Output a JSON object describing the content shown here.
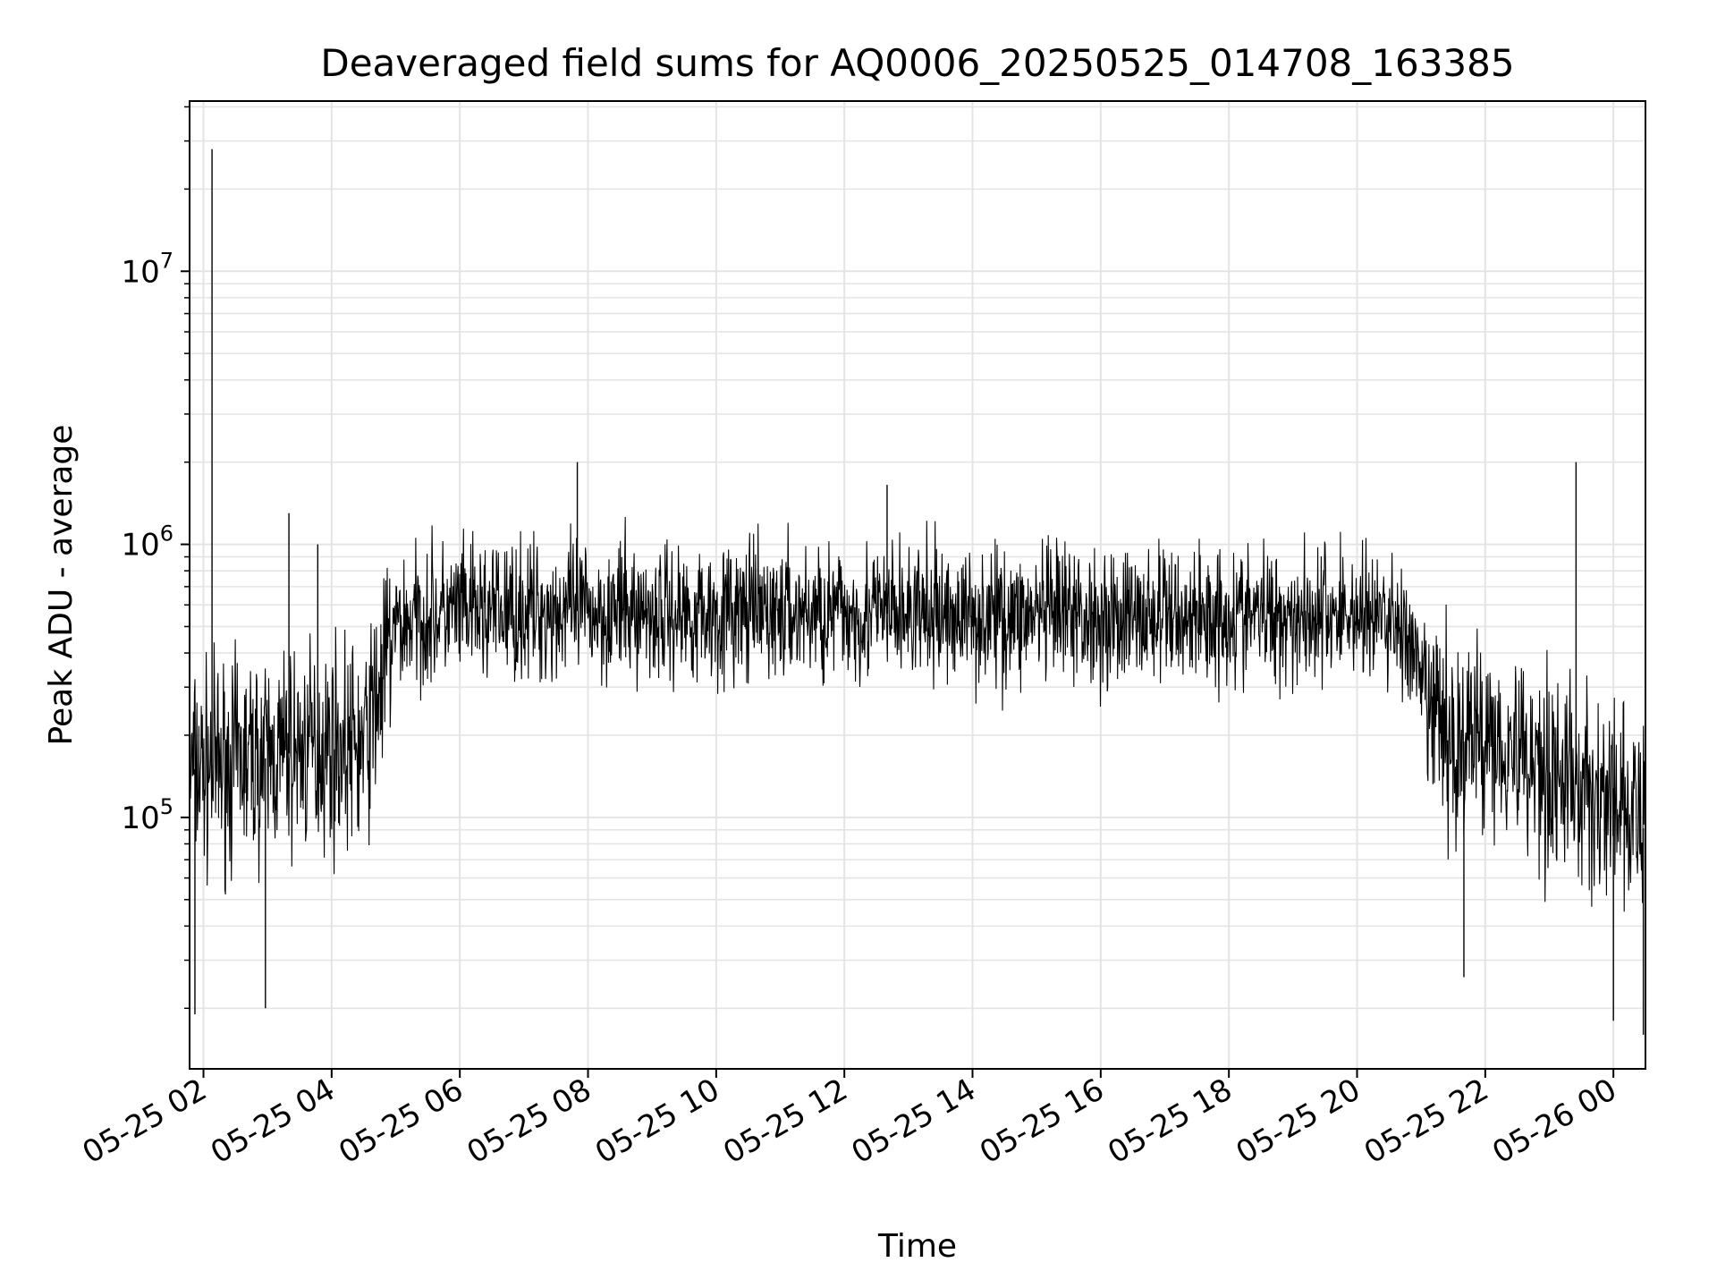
{
  "chart_data": {
    "type": "line",
    "title": "Deaveraged field sums for AQ0006_20250525_014708_163385",
    "xlabel": "Time",
    "ylabel": "Peak ADU - average",
    "x_scale": "time",
    "y_scale": "log",
    "xlim": [
      "2025-05-25 01:47",
      "2025-05-26 00:30"
    ],
    "ylim": [
      12000,
      42000000
    ],
    "x_ticks": [
      "05-25 02",
      "05-25 04",
      "05-25 06",
      "05-25 08",
      "05-25 10",
      "05-25 12",
      "05-25 14",
      "05-25 16",
      "05-25 18",
      "05-25 20",
      "05-25 22",
      "05-26 00"
    ],
    "y_ticks": [
      {
        "base": "10",
        "exp": "5",
        "value": 100000
      },
      {
        "base": "10",
        "exp": "6",
        "value": 1000000
      },
      {
        "base": "10",
        "exp": "7",
        "value": 10000000
      }
    ],
    "grid": true,
    "line_color": "#000000",
    "series": [
      {
        "x": [
          "2025-05-25 01:47",
          "2025-05-25 02:00",
          "2025-05-25 02:30",
          "2025-05-25 03:00",
          "2025-05-25 03:30",
          "2025-05-25 04:00",
          "2025-05-25 04:30",
          "2025-05-25 05:00",
          "2025-05-25 05:30",
          "2025-05-25 06:00",
          "2025-05-25 07:00",
          "2025-05-25 08:00",
          "2025-05-25 10:00",
          "2025-05-25 12:00",
          "2025-05-25 14:00",
          "2025-05-25 16:00",
          "2025-05-25 18:00",
          "2025-05-25 20:00",
          "2025-05-25 20:40",
          "2025-05-25 21:00",
          "2025-05-25 21:30",
          "2025-05-25 22:00",
          "2025-05-25 23:00",
          "2025-05-26 00:00",
          "2025-05-26 00:30"
        ],
        "y": [
          150000,
          150000,
          160000,
          165000,
          175000,
          185000,
          180000,
          500000,
          550000,
          560000,
          570000,
          570000,
          560000,
          560000,
          550000,
          540000,
          550000,
          560000,
          520000,
          300000,
          180000,
          210000,
          150000,
          110000,
          90000
        ],
        "spikes": [
          {
            "x": "2025-05-25 02:08",
            "y": 28000000
          },
          {
            "x": "2025-05-25 03:20",
            "y": 1300000
          },
          {
            "x": "2025-05-25 03:47",
            "y": 1000000
          },
          {
            "x": "2025-05-25 07:50",
            "y": 2000000
          },
          {
            "x": "2025-05-25 12:40",
            "y": 1650000
          },
          {
            "x": "2025-05-25 23:25",
            "y": 2000000
          },
          {
            "x": "2025-05-25 01:52",
            "y": 19000
          },
          {
            "x": "2025-05-25 02:58",
            "y": 20000
          },
          {
            "x": "2025-05-25 21:40",
            "y": 26000
          },
          {
            "x": "2025-05-26 00:00",
            "y": 18000
          },
          {
            "x": "2025-05-26 00:28",
            "y": 16000
          }
        ]
      }
    ]
  }
}
